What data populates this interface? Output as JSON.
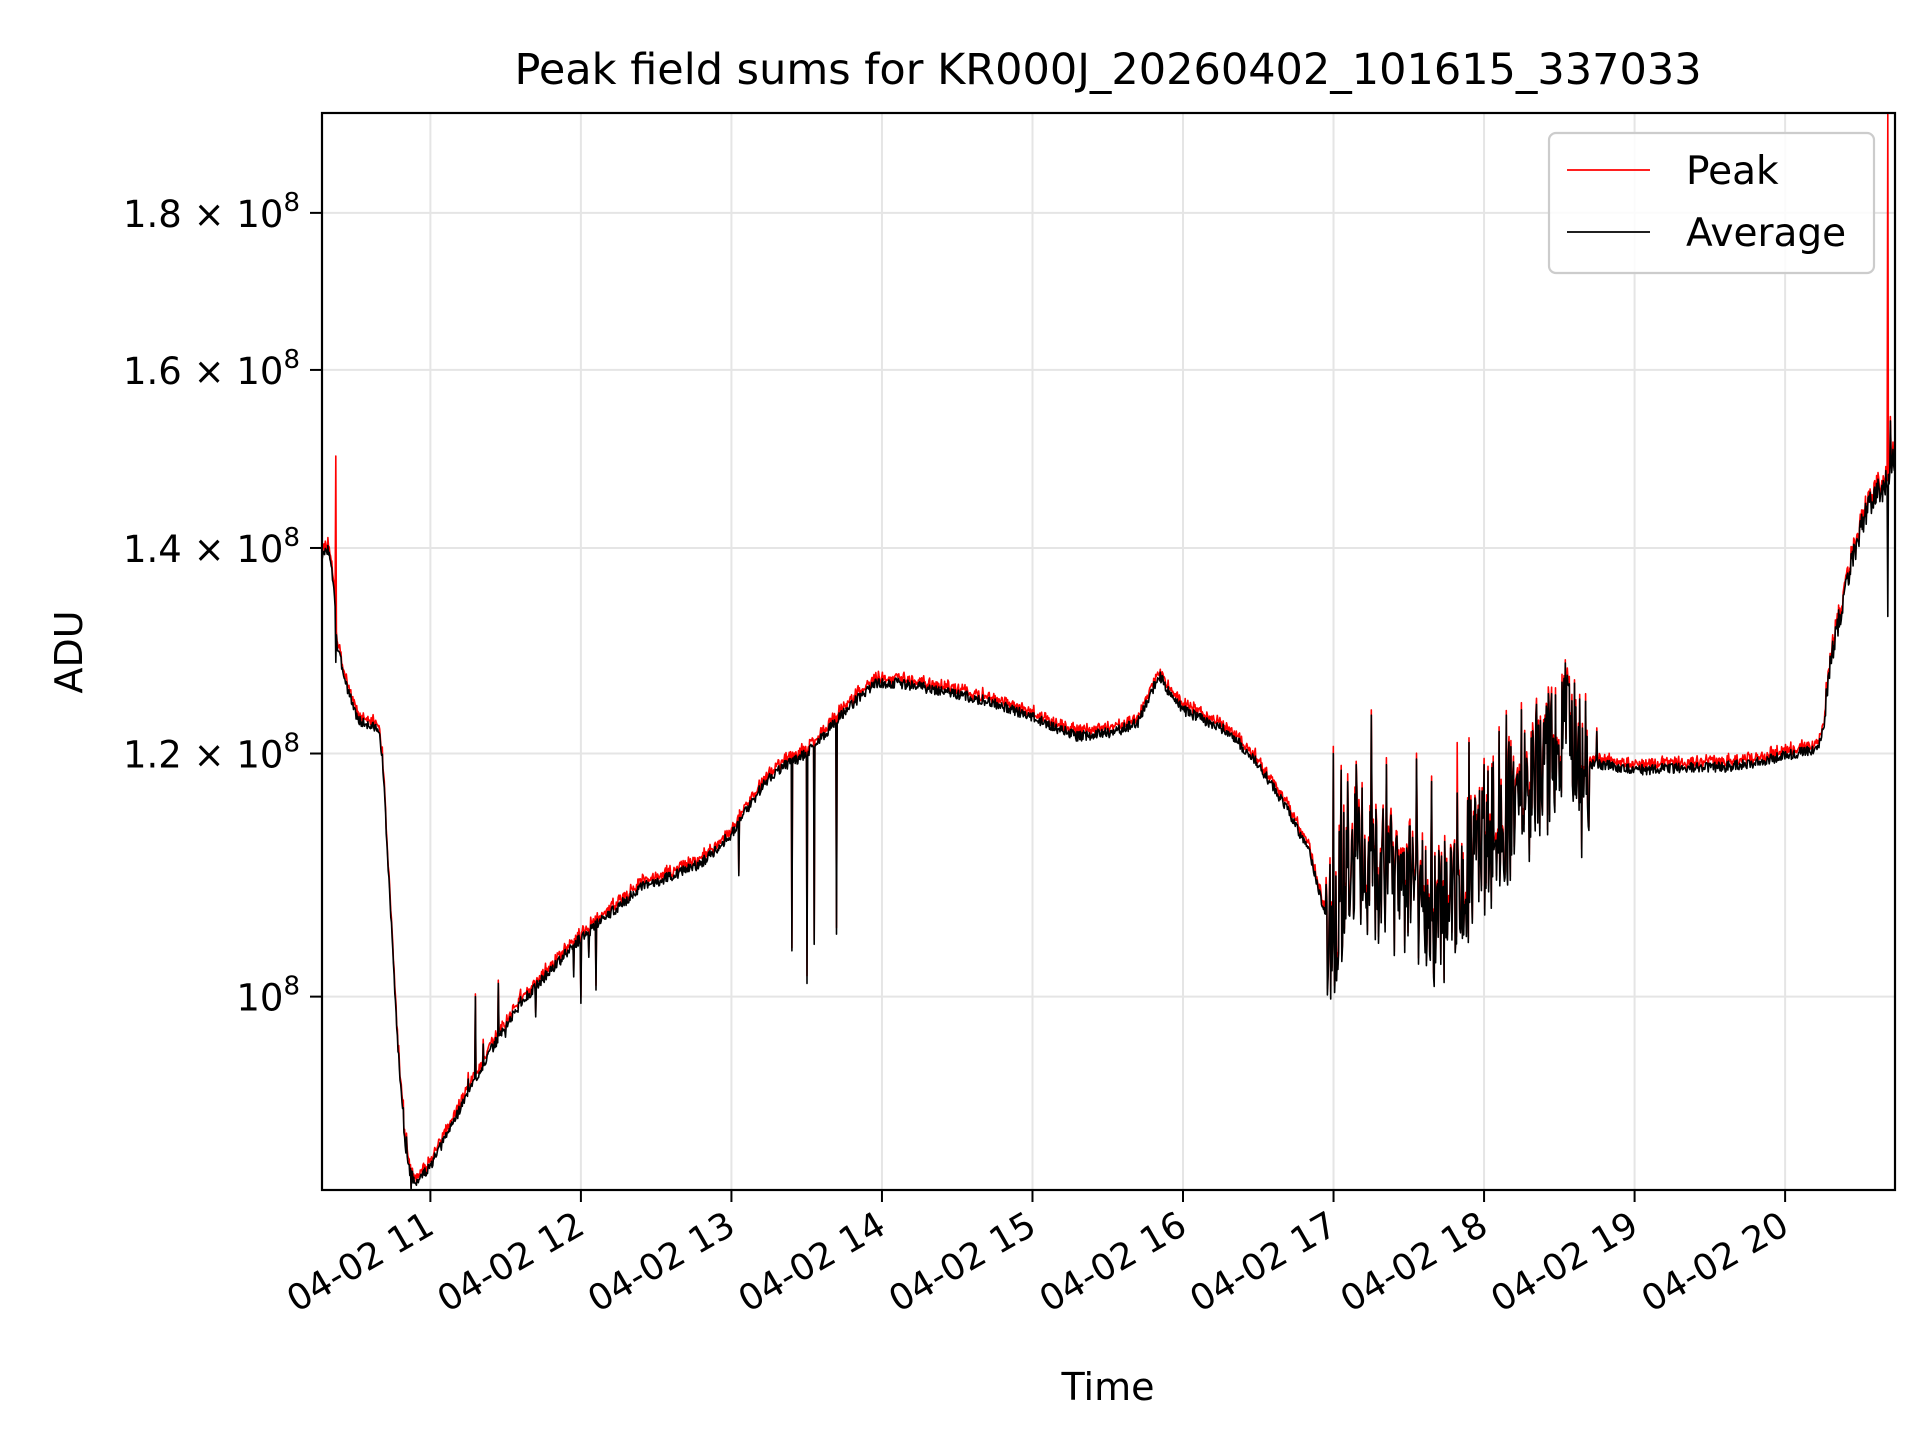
{
  "chart_data": {
    "type": "line",
    "title": "Peak field sums for KR000J_20260402_101615_337033",
    "xlabel": "Time",
    "ylabel": "ADU",
    "yscale": "log",
    "xlim_hours": [
      10.28,
      20.73
    ],
    "ylim": [
      86500000,
      194000000
    ],
    "grid": true,
    "legend_position": "upper right",
    "x_ticks": [
      {
        "value": 11,
        "label": "04-02 11"
      },
      {
        "value": 12,
        "label": "04-02 12"
      },
      {
        "value": 13,
        "label": "04-02 13"
      },
      {
        "value": 14,
        "label": "04-02 14"
      },
      {
        "value": 15,
        "label": "04-02 15"
      },
      {
        "value": 16,
        "label": "04-02 16"
      },
      {
        "value": 17,
        "label": "04-02 17"
      },
      {
        "value": 18,
        "label": "04-02 18"
      },
      {
        "value": 19,
        "label": "04-02 19"
      },
      {
        "value": 20,
        "label": "04-02 20"
      }
    ],
    "y_ticks": [
      {
        "value": 100000000,
        "label": "10",
        "exp": "8"
      },
      {
        "value": 120000000,
        "label": "1.2 × 10",
        "exp": "8"
      },
      {
        "value": 140000000,
        "label": "1.4 × 10",
        "exp": "8"
      },
      {
        "value": 160000000,
        "label": "1.6 × 10",
        "exp": "8"
      },
      {
        "value": 180000000,
        "label": "1.8 × 10",
        "exp": "8"
      }
    ],
    "series": [
      {
        "name": "Peak",
        "color": "#ff0000",
        "spikes": [
          [
            10.37,
            150000000
          ],
          [
            17.82,
            121000000
          ],
          [
            20.68,
            194000000
          ]
        ],
        "noise_seed": 7
      },
      {
        "name": "Average",
        "color": "#000000",
        "noise_seed": 3
      }
    ],
    "baseline": [
      [
        10.28,
        139000000
      ],
      [
        10.32,
        140000000
      ],
      [
        10.36,
        136000000
      ],
      [
        10.38,
        130000000
      ],
      [
        10.45,
        126000000
      ],
      [
        10.52,
        123000000
      ],
      [
        10.6,
        122500000
      ],
      [
        10.65,
        122300000
      ],
      [
        10.68,
        120000000
      ],
      [
        10.72,
        110000000
      ],
      [
        10.78,
        97000000
      ],
      [
        10.82,
        91000000
      ],
      [
        10.85,
        88000000
      ],
      [
        10.9,
        87000000
      ],
      [
        11.0,
        88000000
      ],
      [
        11.1,
        90000000
      ],
      [
        11.2,
        92000000
      ],
      [
        11.4,
        96000000
      ],
      [
        11.6,
        99500000
      ],
      [
        11.8,
        102000000
      ],
      [
        12.0,
        104500000
      ],
      [
        12.2,
        106500000
      ],
      [
        12.4,
        108500000
      ],
      [
        12.6,
        109500000
      ],
      [
        12.8,
        110500000
      ],
      [
        13.0,
        113000000
      ],
      [
        13.2,
        117000000
      ],
      [
        13.3,
        118500000
      ],
      [
        13.5,
        120000000
      ],
      [
        13.8,
        124500000
      ],
      [
        13.95,
        126500000
      ],
      [
        14.1,
        126500000
      ],
      [
        14.4,
        125800000
      ],
      [
        14.7,
        124800000
      ],
      [
        15.0,
        123300000
      ],
      [
        15.3,
        121500000
      ],
      [
        15.55,
        122000000
      ],
      [
        15.7,
        122800000
      ],
      [
        15.8,
        126000000
      ],
      [
        15.84,
        127300000
      ],
      [
        15.9,
        125800000
      ],
      [
        16.0,
        124000000
      ],
      [
        16.3,
        122000000
      ],
      [
        16.5,
        119000000
      ],
      [
        16.7,
        115000000
      ],
      [
        16.85,
        111000000
      ],
      [
        16.95,
        106000000
      ],
      [
        17.0,
        104500000
      ],
      [
        17.1,
        112000000
      ],
      [
        17.3,
        110000000
      ],
      [
        17.5,
        108000000
      ],
      [
        17.7,
        106000000
      ],
      [
        17.9,
        110000000
      ],
      [
        18.1,
        114000000
      ],
      [
        18.3,
        117000000
      ],
      [
        18.45,
        120000000
      ],
      [
        18.55,
        124000000
      ],
      [
        18.65,
        119000000
      ],
      [
        18.8,
        119000000
      ],
      [
        19.0,
        118500000
      ],
      [
        19.3,
        118700000
      ],
      [
        19.6,
        118800000
      ],
      [
        19.8,
        119200000
      ],
      [
        20.0,
        119800000
      ],
      [
        20.22,
        120500000
      ],
      [
        20.25,
        122000000
      ],
      [
        20.3,
        128000000
      ],
      [
        20.4,
        136000000
      ],
      [
        20.5,
        142000000
      ],
      [
        20.6,
        146000000
      ],
      [
        20.65,
        146000000
      ],
      [
        20.73,
        150000000
      ]
    ],
    "dips": [
      [
        10.37,
        128500000
      ],
      [
        10.82,
        92000000
      ],
      [
        10.84,
        90000000
      ],
      [
        10.87,
        86500000
      ],
      [
        11.25,
        94000000
      ],
      [
        11.3,
        100000000
      ],
      [
        11.35,
        96500000
      ],
      [
        11.45,
        101000000
      ],
      [
        11.5,
        97000000
      ],
      [
        11.6,
        100000000
      ],
      [
        11.7,
        98500000
      ],
      [
        11.95,
        101500000
      ],
      [
        12.0,
        99500000
      ],
      [
        12.05,
        103000000
      ],
      [
        12.1,
        100500000
      ],
      [
        13.05,
        109500000
      ],
      [
        13.4,
        103500000
      ],
      [
        13.5,
        101000000
      ],
      [
        13.55,
        104000000
      ],
      [
        13.7,
        104800000
      ],
      [
        18.65,
        111000000
      ],
      [
        20.68,
        133000000
      ]
    ],
    "peaks": [
      [
        17.0,
        120000000
      ],
      [
        17.05,
        118500000
      ],
      [
        17.15,
        119000000
      ],
      [
        17.25,
        123500000
      ],
      [
        17.35,
        119000000
      ],
      [
        17.55,
        119500000
      ],
      [
        17.65,
        117500000
      ],
      [
        17.82,
        116500000
      ],
      [
        17.9,
        121000000
      ],
      [
        18.0,
        119000000
      ],
      [
        18.1,
        122000000
      ],
      [
        18.15,
        123500000
      ],
      [
        18.25,
        124000000
      ],
      [
        18.35,
        124500000
      ],
      [
        18.45,
        125500000
      ],
      [
        18.55,
        126500000
      ],
      [
        18.75,
        122000000
      ],
      [
        20.7,
        154000000
      ]
    ],
    "legend": [
      {
        "label": "Peak",
        "color": "#ff0000"
      },
      {
        "label": "Average",
        "color": "#000000"
      }
    ]
  }
}
